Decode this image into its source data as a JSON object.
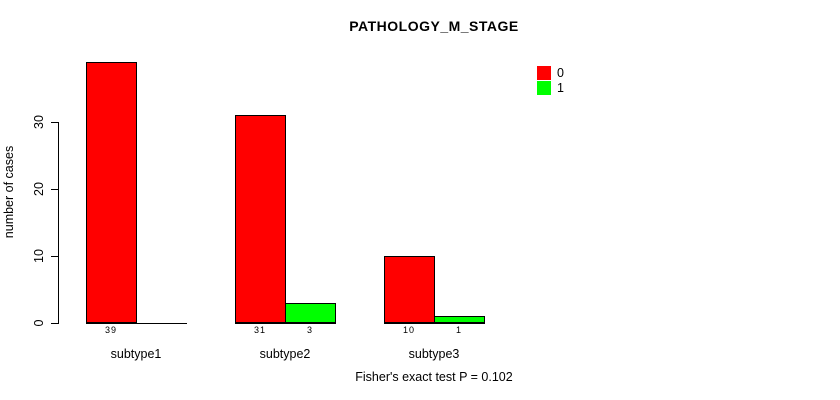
{
  "chart_data": {
    "type": "bar",
    "title": "PATHOLOGY_M_STAGE",
    "ylabel": "number of cases",
    "xlabel": "",
    "categories": [
      "subtype1",
      "subtype2",
      "subtype3"
    ],
    "series": [
      {
        "name": "0",
        "color": "#ff0000",
        "values": [
          39,
          31,
          10
        ]
      },
      {
        "name": "1",
        "color": "#00ff00",
        "values": [
          0,
          3,
          1
        ]
      }
    ],
    "bar_value_labels": [
      [
        "39",
        "",
        ""
      ],
      [
        "31",
        "3",
        ""
      ],
      [
        "10",
        "1",
        ""
      ]
    ],
    "yticks": [
      0,
      10,
      20,
      30
    ],
    "ylim": [
      0,
      39.5
    ],
    "grid": false,
    "legend_position": "top-right",
    "caption": "Fisher's exact test P = 0.102"
  }
}
